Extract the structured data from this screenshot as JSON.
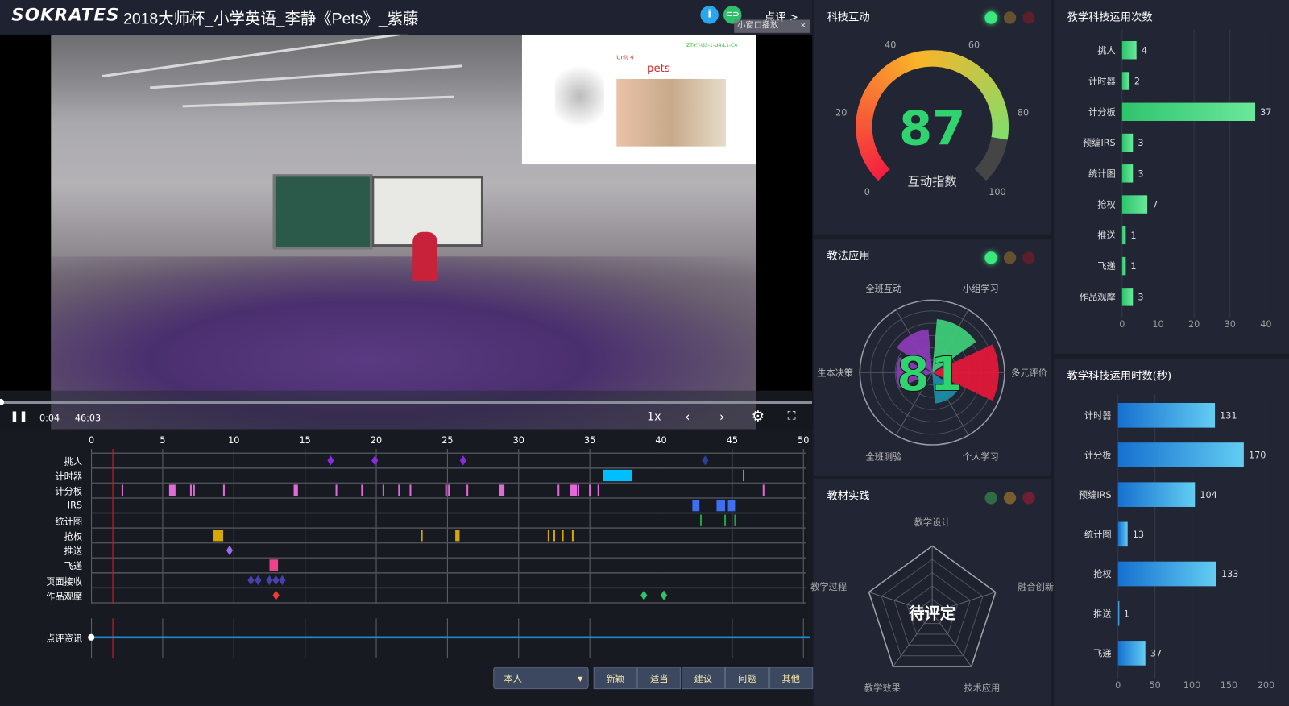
{
  "header": {
    "logo": "SOKRATES",
    "title": "2018大师杯_小学英语_李静《Pets》_紫藤",
    "info_icon": "info-icon",
    "link_icon": "link-icon",
    "review_label": "点评 >",
    "pip_label": "小窗口播放"
  },
  "video": {
    "current_time": "0:04",
    "duration": "46:03",
    "speed": "1x",
    "progress": 0.0014,
    "slide": {
      "unit": "Unit 4",
      "title": "pets",
      "code": "ZT-YY-G3-1-U4-L1-C4"
    }
  },
  "timeline": {
    "ticks": [
      0,
      5,
      10,
      15,
      20,
      25,
      30,
      35,
      40,
      45,
      50
    ],
    "current_time": 1.5,
    "rows": [
      {
        "label": "挑人",
        "color": "#8a2be2",
        "events": [
          {
            "t": 16.8,
            "shape": "diamond"
          },
          {
            "t": 19.9,
            "shape": "diamond"
          },
          {
            "t": 26.1,
            "shape": "diamond"
          },
          {
            "t": 43.1,
            "shape": "diamond",
            "color": "#2a3f9a"
          }
        ]
      },
      {
        "label": "计时器",
        "color": "#00bfff",
        "events": [
          {
            "t": 35.9,
            "end": 37.97,
            "shape": "rect"
          },
          {
            "t": 45.8,
            "shape": "line"
          }
        ]
      },
      {
        "label": "计分板",
        "color": "#e06ad8",
        "events": [
          {
            "t": 2.17,
            "shape": "line"
          },
          {
            "t": 5.45,
            "end": 5.9,
            "shape": "rect"
          },
          {
            "t": 6.98,
            "shape": "line"
          },
          {
            "t": 7.2,
            "shape": "line"
          },
          {
            "t": 9.3,
            "shape": "line"
          },
          {
            "t": 14.2,
            "end": 14.5,
            "shape": "rect"
          },
          {
            "t": 17.2,
            "shape": "line"
          },
          {
            "t": 19.0,
            "shape": "line"
          },
          {
            "t": 20.5,
            "shape": "line"
          },
          {
            "t": 21.6,
            "shape": "line"
          },
          {
            "t": 22.4,
            "shape": "line"
          },
          {
            "t": 24.9,
            "shape": "line"
          },
          {
            "t": 25.1,
            "shape": "line"
          },
          {
            "t": 26.4,
            "shape": "line"
          },
          {
            "t": 28.6,
            "end": 29.0,
            "shape": "rect"
          },
          {
            "t": 32.8,
            "shape": "line"
          },
          {
            "t": 33.6,
            "end": 34.1,
            "shape": "rect"
          },
          {
            "t": 34.2,
            "shape": "line"
          },
          {
            "t": 35.0,
            "shape": "line"
          },
          {
            "t": 35.6,
            "shape": "line"
          },
          {
            "t": 47.2,
            "shape": "line"
          }
        ]
      },
      {
        "label": "IRS",
        "color": "#3d6ff0",
        "events": [
          {
            "t": 42.2,
            "end": 42.7,
            "shape": "rect"
          },
          {
            "t": 43.9,
            "end": 44.5,
            "shape": "rect"
          },
          {
            "t": 44.7,
            "end": 45.2,
            "shape": "rect"
          }
        ]
      },
      {
        "label": "统计图",
        "color": "#22a33a",
        "events": [
          {
            "t": 42.8,
            "shape": "line"
          },
          {
            "t": 44.5,
            "shape": "line"
          },
          {
            "t": 45.2,
            "shape": "line"
          }
        ]
      },
      {
        "label": "抢权",
        "color": "#d4a800",
        "events": [
          {
            "t": 8.57,
            "end": 9.25,
            "shape": "rect"
          },
          {
            "t": 23.2,
            "shape": "line"
          },
          {
            "t": 25.55,
            "end": 25.85,
            "shape": "rect"
          },
          {
            "t": 32.1,
            "shape": "line"
          },
          {
            "t": 32.5,
            "shape": "line"
          },
          {
            "t": 33.1,
            "shape": "line"
          },
          {
            "t": 33.8,
            "shape": "line"
          }
        ]
      },
      {
        "label": "推送",
        "color": "#9b6cf0",
        "events": [
          {
            "t": 9.7,
            "shape": "diamond"
          }
        ]
      },
      {
        "label": "飞递",
        "color": "#f0428a",
        "events": [
          {
            "t": 12.5,
            "end": 13.1,
            "shape": "rect"
          }
        ]
      },
      {
        "label": "页面接收",
        "color": "#4a3fae",
        "events": [
          {
            "t": 11.2,
            "shape": "diamond"
          },
          {
            "t": 11.7,
            "shape": "diamond"
          },
          {
            "t": 12.5,
            "shape": "diamond"
          },
          {
            "t": 12.95,
            "shape": "diamond"
          },
          {
            "t": 13.4,
            "shape": "diamond"
          }
        ]
      },
      {
        "label": "作品观摩",
        "color": "#2fc46a",
        "events": [
          {
            "t": 12.96,
            "shape": "diamond",
            "color": "#f03a3a"
          },
          {
            "t": 38.8,
            "shape": "diamond"
          },
          {
            "t": 40.2,
            "shape": "diamond"
          }
        ]
      }
    ],
    "comment_label": "点评资讯"
  },
  "bottom": {
    "selector": "本人",
    "buttons": [
      "新颖",
      "适当",
      "建议",
      "问题",
      "其他"
    ]
  },
  "panels": {
    "tech": {
      "title": "科技互动",
      "status": "green",
      "gauge": {
        "value": 87,
        "min": 0,
        "max": 100,
        "ticks": [
          0,
          20,
          40,
          60,
          80,
          100
        ],
        "label": "互动指数"
      }
    },
    "method": {
      "title": "教法应用",
      "status": "green",
      "score": "81",
      "categories": [
        "多元评价",
        "个人学习",
        "全班测验",
        "生本决策",
        "全班互动",
        "小组学习"
      ],
      "values": [
        92,
        43,
        0,
        50,
        60,
        74
      ],
      "colors": [
        "#e8173a",
        "#1b8fa8",
        "#1b8fa8",
        "#8e3bb8",
        "#8e3bb8",
        "#3ecf78"
      ]
    },
    "material": {
      "title": "教材实践",
      "status": "none",
      "center_text": "待评定",
      "categories": [
        "教学设计",
        "融合创新",
        "技术应用",
        "教学效果",
        "教学过程"
      ]
    }
  },
  "chart_data": [
    {
      "type": "bar",
      "orientation": "horizontal",
      "title": "教学科技运用次数",
      "categories": [
        "挑人",
        "计时器",
        "计分板",
        "预编IRS",
        "统计图",
        "抢权",
        "推送",
        "飞递",
        "作品观摩"
      ],
      "values": [
        4,
        2,
        37,
        3,
        3,
        7,
        1,
        1,
        3
      ],
      "xlim": [
        0,
        40
      ],
      "xticks": [
        0,
        10,
        20,
        30,
        40
      ],
      "color": "#35d47c"
    },
    {
      "type": "bar",
      "orientation": "horizontal",
      "title": "教学科技运用时数(秒)",
      "categories": [
        "计时器",
        "计分板",
        "预编IRS",
        "统计图",
        "抢权",
        "推送",
        "飞递"
      ],
      "values": [
        131,
        170,
        104,
        13,
        133,
        1,
        37
      ],
      "xlim": [
        0,
        200
      ],
      "xticks": [
        0,
        50,
        100,
        150,
        200
      ],
      "color": "#1f8ee0"
    }
  ]
}
